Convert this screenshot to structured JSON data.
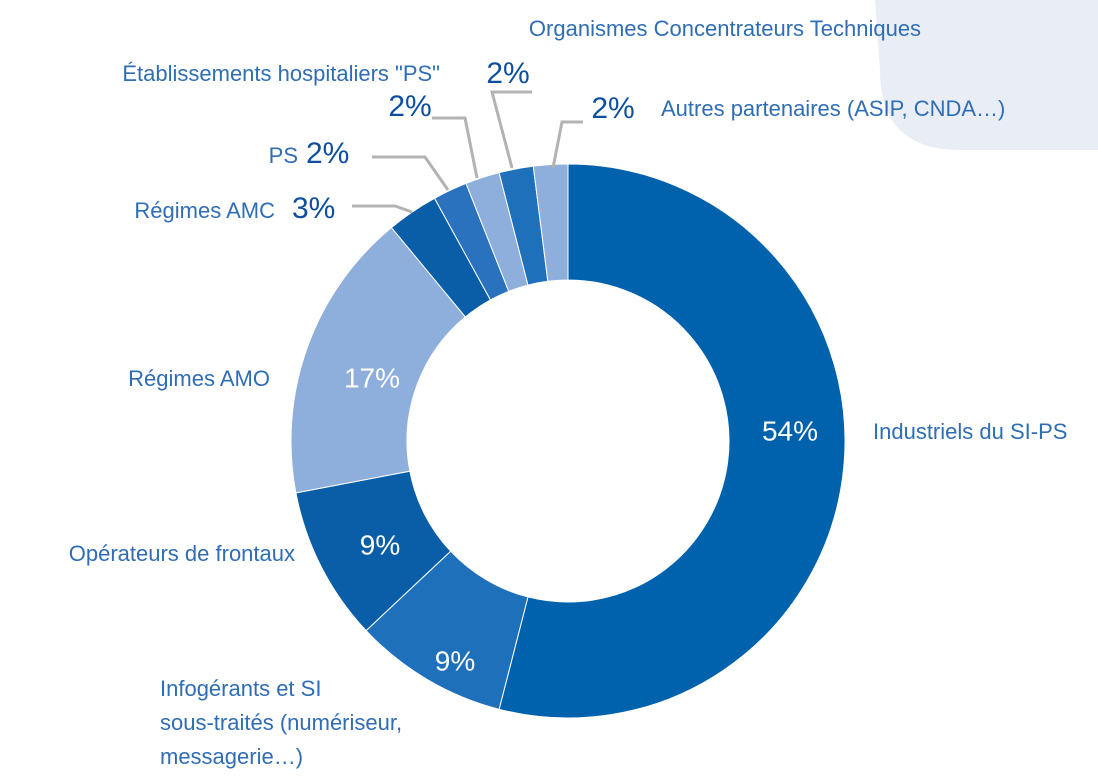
{
  "chart_data": {
    "type": "pie",
    "donut": true,
    "categories": [
      "Industriels du SI-PS",
      "Infogérants et SI\nsous-traités (numériseur,\nmessagerie…)",
      "Opérateurs de frontaux",
      "Régimes AMO",
      "Régimes AMC",
      "PS",
      "Établissements hospitaliers \"PS\"",
      "Organismes Concentrateurs Techniques",
      "Autres partenaires (ASIP, CNDA…)"
    ],
    "values": [
      54,
      9,
      9,
      17,
      3,
      2,
      2,
      2,
      2
    ],
    "value_labels": [
      "54%",
      "9%",
      "9%",
      "17%",
      "3%",
      "2%",
      "2%",
      "2%",
      "2%"
    ],
    "colors": [
      "#0061ad",
      "#1f70ba",
      "#0a5ea8",
      "#8eaedb",
      "#0a5ea8",
      "#2a72bd",
      "#8eaedb",
      "#1f70ba",
      "#8eaedb"
    ]
  }
}
